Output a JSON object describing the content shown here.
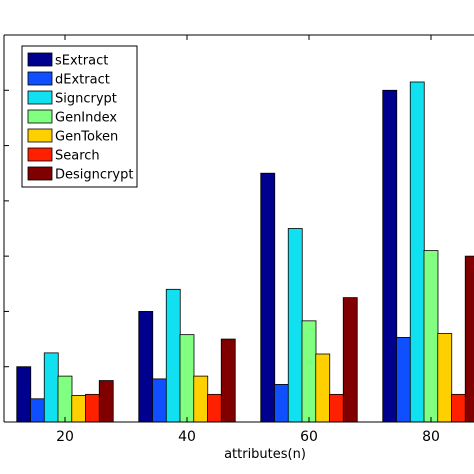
{
  "chart_data": {
    "type": "bar",
    "title": "",
    "xlabel": "attributes(n)",
    "ylabel": "",
    "categories": [
      "20",
      "40",
      "60",
      "80"
    ],
    "ylim": [
      0,
      7
    ],
    "yticks": [
      1,
      2,
      3,
      4,
      5,
      6,
      7
    ],
    "grid": false,
    "legend_position": "top-left",
    "series": [
      {
        "name": "sExtract",
        "color": "#00008f",
        "values": [
          1.0,
          2.0,
          4.5,
          6.0
        ]
      },
      {
        "name": "dExtract",
        "color": "#0f4fff",
        "values": [
          0.42,
          0.78,
          0.68,
          1.53
        ]
      },
      {
        "name": "Signcrypt",
        "color": "#10e0f0",
        "values": [
          1.25,
          2.4,
          3.5,
          6.15
        ]
      },
      {
        "name": "GenIndex",
        "color": "#80ff80",
        "values": [
          0.83,
          1.58,
          1.83,
          3.1
        ]
      },
      {
        "name": "GenToken",
        "color": "#ffd000",
        "values": [
          0.48,
          0.83,
          1.23,
          1.6
        ]
      },
      {
        "name": "Search",
        "color": "#ff2000",
        "values": [
          0.5,
          0.5,
          0.5,
          0.5
        ]
      },
      {
        "name": "Designcrypt",
        "color": "#800000",
        "values": [
          0.75,
          1.5,
          2.25,
          3.0
        ]
      }
    ]
  }
}
